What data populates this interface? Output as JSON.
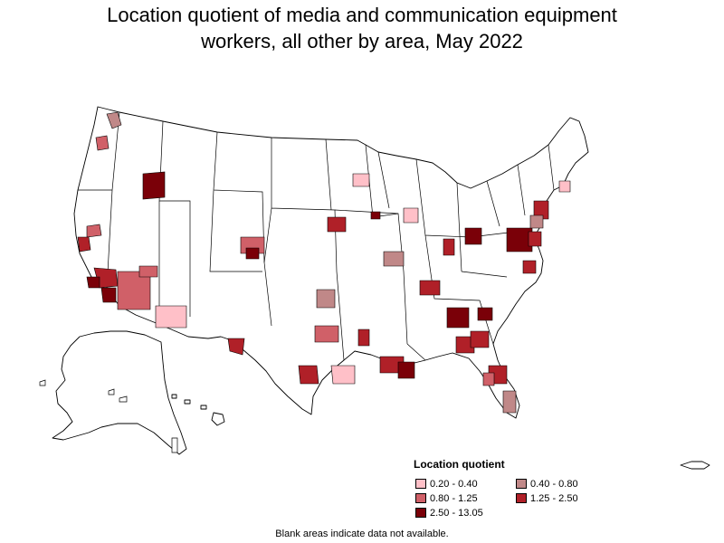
{
  "title_lines": [
    "Location quotient of media and communication equipment",
    "workers, all other by area, May 2022"
  ],
  "legend": {
    "title": "Location quotient",
    "items": [
      {
        "label": "0.20 - 0.40",
        "color": "#ffc0c8"
      },
      {
        "label": "0.40 - 0.80",
        "color": "#c08888"
      },
      {
        "label": "0.80 - 1.25",
        "color": "#d06068"
      },
      {
        "label": "1.25 - 2.50",
        "color": "#b02028"
      },
      {
        "label": "2.50 - 13.05",
        "color": "#7a0008"
      }
    ]
  },
  "footnote": "Blank areas indicate data not available.",
  "map_colors": {
    "c1": "#ffc0c8",
    "c2": "#c08888",
    "c3": "#d06068",
    "c4": "#b02028",
    "c5": "#7a0008"
  }
}
